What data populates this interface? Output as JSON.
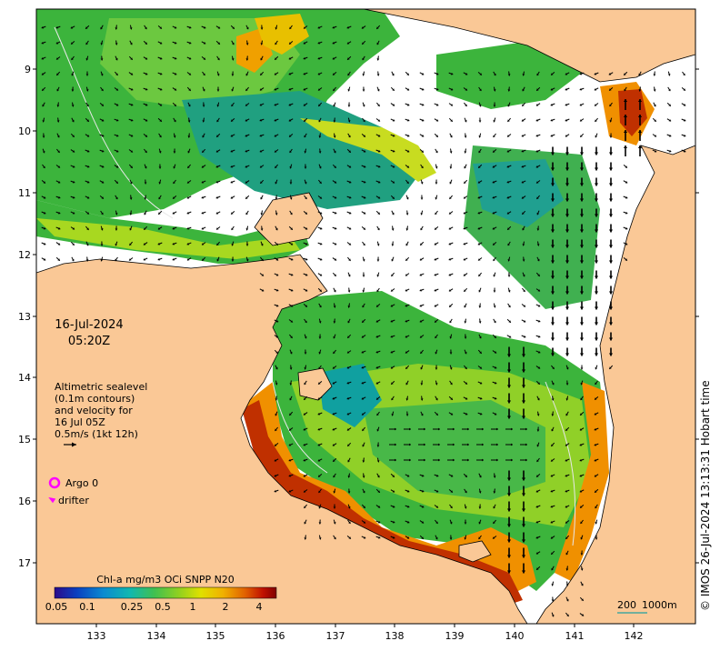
{
  "map": {
    "date": "16-Jul-2024",
    "time": "05:20Z",
    "credit": "© IMOS 26-Jul-2024 13:13:31 Hobart time",
    "lat_ticks": [
      "9",
      "10",
      "11",
      "12",
      "13",
      "14",
      "15",
      "16",
      "17"
    ],
    "lon_ticks": [
      "133",
      "134",
      "135",
      "136",
      "137",
      "138",
      "139",
      "140",
      "141",
      "142"
    ],
    "annotation": {
      "line1": "Altimetric sealevel",
      "line2": "(0.1m contours)",
      "line3": "and velocity for",
      "line4": "16 Jul 05Z",
      "line5": "0.5m/s (1kt 12h)"
    },
    "legend": {
      "argo": "Argo 0",
      "drifter": "drifter"
    },
    "colorbar": {
      "title": "Chl-a mg/m3 OCi SNPP N20",
      "ticks": [
        "0.05",
        "0.1",
        "0.25",
        "0.5",
        "1",
        "2",
        "4"
      ],
      "colors": [
        "#2a0a8a",
        "#0a40c0",
        "#0a8ad0",
        "#10b8b0",
        "#40c050",
        "#90d020",
        "#e0e000",
        "#f0b000",
        "#e06000",
        "#c01000",
        "#800000"
      ]
    },
    "scale": {
      "label1": "200",
      "label2": "1000m"
    },
    "colors": {
      "land": "#fac896",
      "coast": "#000000",
      "green": "#3cb43c",
      "teal": "#20a080",
      "yellowgreen": "#a8d820",
      "yellow": "#e8e800",
      "orange": "#f09000",
      "red": "#c02000",
      "marker": "#ff00ff"
    }
  }
}
